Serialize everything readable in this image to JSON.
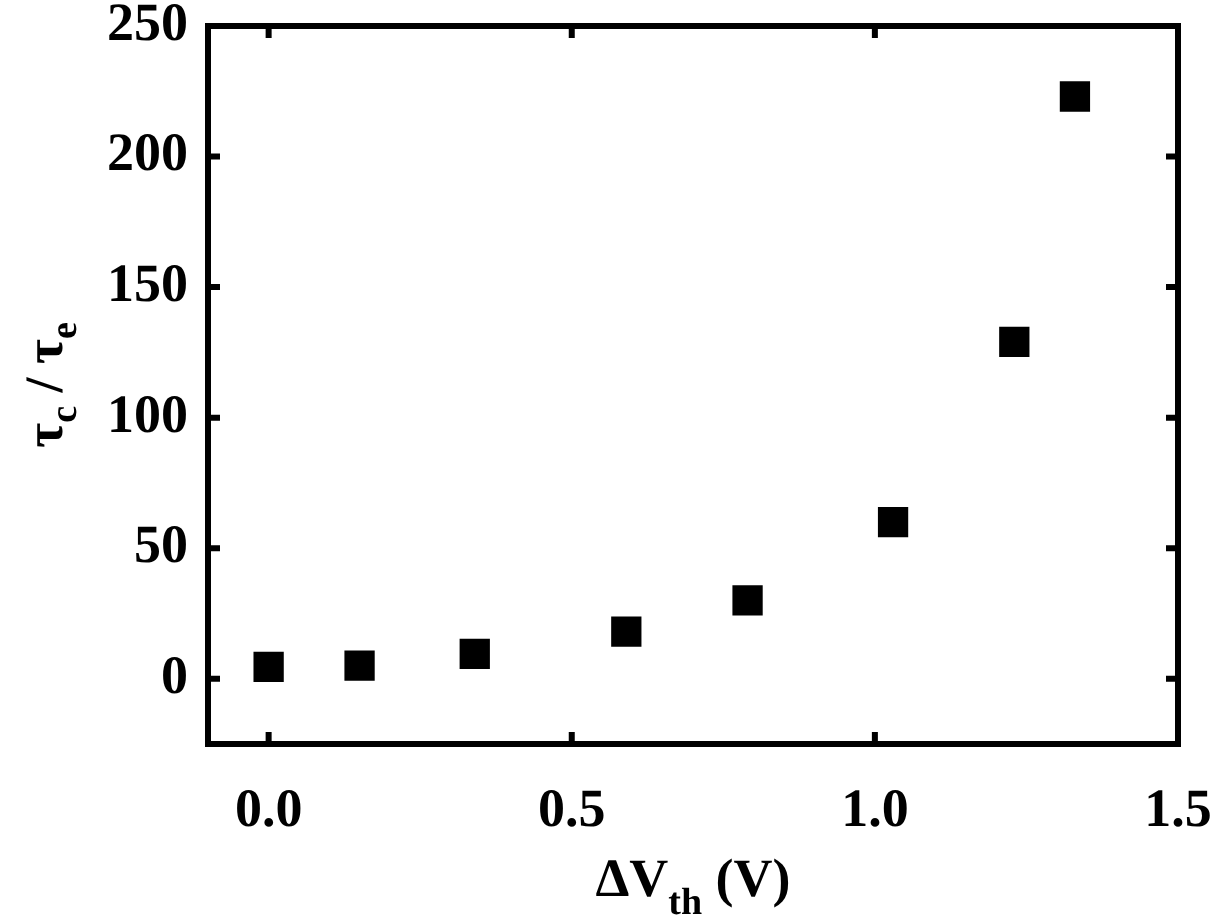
{
  "chart_data": {
    "type": "scatter",
    "xlabel": "ΔV$_{th}$ (V)",
    "ylabel": "τ$_{c}$ / τ$_{e}$",
    "x": [
      0,
      0.15,
      0.34,
      0.59,
      0.79,
      1.03,
      1.23,
      1.33
    ],
    "series": [
      {
        "color": "#000000",
        "values": [
          4.5,
          5,
          9.5,
          18,
          30,
          60,
          129,
          223
        ]
      }
    ],
    "xlim": [
      -0.1,
      1.5
    ],
    "xticks": [
      {
        "value": 0,
        "label": "0.0"
      },
      {
        "value": 0.5,
        "label": "0.5"
      },
      {
        "value": 1,
        "label": "1.0"
      },
      {
        "value": 1.5,
        "label": "1.5"
      }
    ],
    "ylim": [
      -25,
      250
    ],
    "yticks": [
      0,
      50,
      100,
      150,
      200,
      250
    ],
    "marker": "square",
    "grid": false,
    "legend": false
  }
}
